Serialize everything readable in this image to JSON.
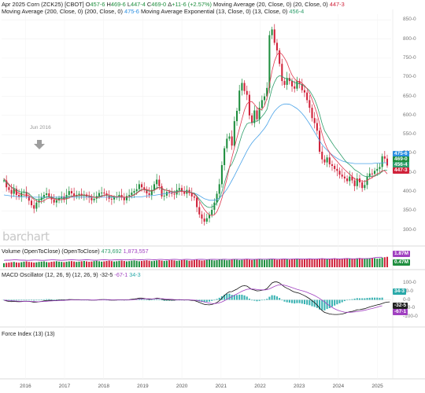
{
  "header": {
    "line1": [
      {
        "text": "Apr 2025 Corn (ZCK25) [CBOT] ",
        "color": "#222222"
      },
      {
        "text": "O",
        "color": "#222222"
      },
      {
        "text": "457-6 ",
        "color": "#1e8e3e"
      },
      {
        "text": "H",
        "color": "#222222"
      },
      {
        "text": "469-6 ",
        "color": "#1e8e3e"
      },
      {
        "text": "L",
        "color": "#222222"
      },
      {
        "text": "447-4 ",
        "color": "#1e8e3e"
      },
      {
        "text": "C",
        "color": "#222222"
      },
      {
        "text": "469-0 ",
        "color": "#1e8e3e"
      },
      {
        "text": "Δ",
        "color": "#222222"
      },
      {
        "text": "+11-6 (+2.57%) ",
        "color": "#1e8e3e"
      },
      {
        "text": "Moving Average (20, Close, 0) (20, Close, 0) ",
        "color": "#222222"
      },
      {
        "text": "447-3",
        "color": "#d0223a"
      }
    ],
    "line2": [
      {
        "text": "Moving Average (200, Close, 0) (200, Close, 0) ",
        "color": "#222222"
      },
      {
        "text": "475-6 ",
        "color": "#2b8fe0"
      },
      {
        "text": "Moving Average Exponential (13, Close, 0) (13, Close, 0) ",
        "color": "#222222"
      },
      {
        "text": "456-4",
        "color": "#2e9e6b"
      }
    ]
  },
  "annotation": "Jun 2016",
  "logo": "barchart",
  "price_tags": [
    {
      "text": "475-6",
      "color": "#2b8fe0"
    },
    {
      "text": "469-0",
      "color": "#1e8e3e"
    },
    {
      "text": "456-4",
      "color": "#2e9e6b"
    },
    {
      "text": "447-3",
      "color": "#d0223a"
    }
  ],
  "volume_panel": {
    "title_parts": [
      {
        "text": "Volume (OpenToClose) (OpenToClose) ",
        "color": "#222222"
      },
      {
        "text": "473,692 ",
        "color": "#2e9e6b"
      },
      {
        "text": "1,873,557",
        "color": "#a040c0"
      }
    ],
    "tags": [
      {
        "text": "1.87M",
        "color": "#a040c0"
      },
      {
        "text": "0.47M",
        "color": "#1e8e3e"
      }
    ]
  },
  "macd_panel": {
    "title_parts": [
      {
        "text": "MACD Oscillator (12, 26, 9) (12, 26, 9) ",
        "color": "#222222"
      },
      {
        "text": "-32-5 ",
        "color": "#222222"
      },
      {
        "text": "-67-1 ",
        "color": "#a040c0"
      },
      {
        "text": "34-3",
        "color": "#2aa9a9"
      }
    ],
    "tags": [
      {
        "text": "34-3",
        "color": "#2aa9a9"
      },
      {
        "text": "-32-5",
        "color": "#222222"
      },
      {
        "text": "-67-1",
        "color": "#a040c0"
      }
    ],
    "ticks": [
      "100-0",
      "50-0",
      "0-0",
      "-50-0",
      "-100-0"
    ]
  },
  "force_panel": {
    "title": "Force Index (13) (13)"
  },
  "chart_data": {
    "type": "candlestick",
    "title": "Apr 2025 Corn (ZCK25) [CBOT]",
    "price_ticks": [
      "850-0",
      "800-0",
      "750-0",
      "700-0",
      "650-0",
      "600-0",
      "550-0",
      "500-0",
      "450-0",
      "400-0",
      "350-0",
      "300-0"
    ],
    "ylim": [
      285,
      865
    ],
    "x_labels": [
      "2016",
      "2017",
      "2018",
      "2019",
      "2020",
      "2021",
      "2022",
      "2023",
      "2024",
      "2025"
    ],
    "period_start_year": 2015.45,
    "period_end_year": 2025.25,
    "closes": [
      430,
      412,
      405,
      395,
      408,
      392,
      388,
      398,
      400,
      388,
      377,
      365,
      356,
      372,
      378,
      385,
      392,
      396,
      388,
      380,
      372,
      378,
      384,
      388,
      381,
      392,
      402,
      396,
      388,
      392,
      395,
      390,
      393,
      388,
      385,
      378,
      382,
      389,
      397,
      398,
      396,
      390,
      382,
      380,
      385,
      387,
      392,
      385,
      378,
      389,
      392,
      398,
      402,
      407,
      420,
      412,
      405,
      396,
      392,
      405,
      420,
      432,
      415,
      388,
      390,
      400,
      398,
      395,
      393,
      405,
      410,
      400,
      395,
      405,
      397,
      388,
      385,
      360,
      341,
      330,
      322,
      331,
      340,
      353,
      372,
      395,
      420,
      470,
      514,
      539,
      545,
      521,
      585,
      612,
      665,
      685,
      664,
      654,
      600,
      580,
      613,
      590,
      620,
      640,
      650,
      672,
      810,
      825,
      790,
      770,
      735,
      690,
      680,
      698,
      690,
      676,
      670,
      690,
      682,
      666,
      660,
      640,
      620,
      593,
      580,
      560,
      505,
      485,
      477,
      490,
      472,
      468,
      460,
      455,
      445,
      440,
      435,
      428,
      440,
      430,
      415,
      435,
      425,
      410,
      418,
      440,
      448,
      447,
      455,
      460,
      465,
      493,
      487,
      469
    ],
    "ma20": [
      435,
      428,
      420,
      412,
      406,
      400,
      396,
      393,
      392,
      391,
      390,
      386,
      380,
      376,
      374,
      374,
      377,
      381,
      384,
      384,
      382,
      380,
      379,
      380,
      380,
      382,
      384,
      387,
      389,
      390,
      391,
      392,
      392,
      391,
      390,
      388,
      386,
      385,
      386,
      388,
      391,
      393,
      392,
      390,
      388,
      387,
      387,
      387,
      386,
      386,
      387,
      389,
      392,
      396,
      401,
      405,
      407,
      406,
      404,
      402,
      404,
      408,
      412,
      410,
      406,
      404,
      402,
      400,
      398,
      399,
      401,
      402,
      401,
      400,
      399,
      397,
      394,
      387,
      376,
      364,
      354,
      346,
      340,
      338,
      340,
      348,
      363,
      383,
      408,
      434,
      464,
      490,
      515,
      541,
      565,
      590,
      614,
      630,
      636,
      636,
      629,
      620,
      615,
      616,
      625,
      645,
      680,
      716,
      742,
      758,
      765,
      760,
      750,
      738,
      720,
      706,
      696,
      690,
      688,
      684,
      678,
      670,
      658,
      642,
      624,
      604,
      578,
      552,
      530,
      514,
      503,
      494,
      487,
      480,
      472,
      465,
      458,
      452,
      446,
      440,
      434,
      432,
      430,
      428,
      427,
      430,
      434,
      438,
      442,
      447,
      450,
      455,
      455,
      447
    ],
    "ma200": [
      392,
      391,
      390,
      389,
      388,
      388,
      387,
      387,
      387,
      386,
      386,
      386,
      386,
      386,
      386,
      386,
      386,
      386,
      386,
      386,
      386,
      386,
      386,
      386,
      386,
      386,
      386,
      386,
      386,
      386,
      386,
      386,
      386,
      386,
      386,
      386,
      386,
      386,
      386,
      386,
      386,
      386,
      386,
      386,
      386,
      386,
      386,
      386,
      386,
      386,
      386,
      386,
      386,
      387,
      387,
      387,
      388,
      389,
      390,
      390,
      391,
      392,
      393,
      394,
      395,
      396,
      397,
      398,
      399,
      400,
      401,
      402,
      402,
      401,
      400,
      398,
      396,
      394,
      390,
      386,
      382,
      380,
      378,
      378,
      378,
      380,
      384,
      390,
      398,
      407,
      418,
      430,
      442,
      455,
      468,
      481,
      494,
      507,
      518,
      528,
      536,
      543,
      550,
      558,
      566,
      576,
      589,
      601,
      611,
      618,
      624,
      628,
      630,
      630,
      629,
      626,
      622,
      618,
      612,
      605,
      597,
      588,
      578,
      567,
      556,
      545,
      534,
      524,
      516,
      509,
      502,
      497,
      492,
      488,
      484,
      481,
      479,
      477,
      476,
      475,
      474,
      474,
      474,
      474,
      474,
      474,
      474,
      474,
      475,
      475,
      475,
      476,
      476,
      476
    ],
    "ema13": [
      432,
      424,
      418,
      412,
      410,
      405,
      401,
      400,
      400,
      398,
      395,
      389,
      383,
      380,
      380,
      381,
      384,
      387,
      387,
      386,
      383,
      382,
      382,
      383,
      383,
      385,
      388,
      389,
      389,
      389,
      390,
      390,
      390,
      390,
      389,
      387,
      386,
      386,
      388,
      390,
      391,
      391,
      389,
      387,
      387,
      387,
      388,
      387,
      386,
      386,
      387,
      390,
      393,
      397,
      403,
      406,
      406,
      404,
      402,
      402,
      406,
      411,
      412,
      408,
      405,
      404,
      403,
      401,
      400,
      401,
      403,
      403,
      401,
      401,
      400,
      398,
      396,
      389,
      381,
      373,
      366,
      361,
      359,
      360,
      364,
      371,
      382,
      400,
      423,
      446,
      464,
      473,
      488,
      505,
      528,
      550,
      566,
      578,
      581,
      581,
      585,
      585,
      589,
      597,
      605,
      616,
      644,
      670,
      687,
      699,
      704,
      702,
      698,
      696,
      695,
      691,
      686,
      684,
      683,
      680,
      676,
      671,
      665,
      654,
      642,
      625,
      603,
      579,
      560,
      549,
      538,
      528,
      518,
      510,
      501,
      492,
      483,
      476,
      471,
      465,
      458,
      454,
      450,
      444,
      441,
      440,
      440,
      441,
      442,
      444,
      447,
      454,
      457,
      456
    ],
    "volume_units": "relative 0-1",
    "volume": [
      0.3,
      0.33,
      0.35,
      0.38,
      0.4,
      0.36,
      0.34,
      0.38,
      0.42,
      0.44,
      0.4,
      0.38,
      0.35,
      0.37,
      0.4,
      0.42,
      0.44,
      0.39,
      0.37,
      0.41,
      0.43,
      0.45,
      0.42,
      0.4,
      0.38,
      0.41,
      0.44,
      0.46,
      0.43,
      0.4,
      0.42,
      0.45,
      0.47,
      0.44,
      0.41,
      0.43,
      0.46,
      0.48,
      0.45,
      0.42,
      0.44,
      0.47,
      0.49,
      0.46,
      0.43,
      0.45,
      0.48,
      0.5,
      0.47,
      0.44,
      0.46,
      0.49,
      0.51,
      0.48,
      0.45,
      0.47,
      0.5,
      0.52,
      0.49,
      0.46,
      0.48,
      0.51,
      0.53,
      0.5,
      0.47,
      0.49,
      0.52,
      0.54,
      0.51,
      0.48,
      0.5,
      0.53,
      0.55,
      0.52,
      0.49,
      0.51,
      0.54,
      0.56,
      0.53,
      0.5,
      0.52,
      0.55,
      0.57,
      0.54,
      0.51,
      0.53,
      0.56,
      0.58,
      0.55,
      0.52,
      0.54,
      0.57,
      0.59,
      0.56,
      0.53,
      0.55,
      0.58,
      0.6,
      0.57,
      0.54,
      0.56,
      0.59,
      0.61,
      0.58,
      0.55,
      0.57,
      0.6,
      0.62,
      0.59,
      0.56,
      0.58,
      0.61,
      0.63,
      0.6,
      0.57,
      0.59,
      0.62,
      0.64,
      0.61,
      0.58,
      0.6,
      0.63,
      0.65,
      0.62,
      0.59,
      0.61,
      0.64,
      0.66,
      0.63,
      0.6,
      0.62,
      0.65,
      0.67,
      0.64,
      0.61,
      0.63,
      0.66,
      0.68,
      0.65,
      0.62,
      0.64,
      0.67,
      0.69,
      0.66,
      0.63,
      0.65,
      0.68,
      0.7,
      0.67,
      0.64,
      0.66,
      0.72,
      0.75,
      0.78
    ],
    "volume_ma": [
      0.52,
      0.53,
      0.53,
      0.54,
      0.55,
      0.55,
      0.54,
      0.53,
      0.53,
      0.52,
      0.52,
      0.53,
      0.54,
      0.54,
      0.53,
      0.52,
      0.52,
      0.53,
      0.54,
      0.55,
      0.55,
      0.54,
      0.53,
      0.52,
      0.53,
      0.54,
      0.55,
      0.56,
      0.55,
      0.54,
      0.53,
      0.54,
      0.55,
      0.56,
      0.55,
      0.54,
      0.53,
      0.53,
      0.54,
      0.55,
      0.56,
      0.55,
      0.54,
      0.54,
      0.55,
      0.56,
      0.57,
      0.56,
      0.55,
      0.55,
      0.56,
      0.57,
      0.58,
      0.57,
      0.56,
      0.56,
      0.57,
      0.58,
      0.58,
      0.57,
      0.56,
      0.57,
      0.58,
      0.58,
      0.57,
      0.56,
      0.57,
      0.58,
      0.59,
      0.58,
      0.57,
      0.57,
      0.58,
      0.59,
      0.58,
      0.57,
      0.57,
      0.58,
      0.59,
      0.59,
      0.58,
      0.57,
      0.58,
      0.59,
      0.59,
      0.58,
      0.58,
      0.59,
      0.6,
      0.59,
      0.58,
      0.59,
      0.6,
      0.6,
      0.59,
      0.59,
      0.6,
      0.61,
      0.6,
      0.59,
      0.59,
      0.6,
      0.61,
      0.6,
      0.6,
      0.6,
      0.61,
      0.62,
      0.61,
      0.6,
      0.6,
      0.61,
      0.62,
      0.61,
      0.6,
      0.61,
      0.62,
      0.63,
      0.62,
      0.61,
      0.61,
      0.62,
      0.63,
      0.62,
      0.61,
      0.62,
      0.63,
      0.64,
      0.63,
      0.62,
      0.62,
      0.63,
      0.64,
      0.63,
      0.62,
      0.63,
      0.64,
      0.65,
      0.64,
      0.63,
      0.63,
      0.64,
      0.65,
      0.64,
      0.64,
      0.65,
      0.66,
      0.68,
      0.72,
      0.74,
      0.75,
      0.75
    ],
    "macd_ylim": [
      -130,
      130
    ],
    "macd": [
      -2,
      -6,
      -9,
      -10,
      -9,
      -10,
      -11,
      -10,
      -8,
      -8,
      -9,
      -11,
      -14,
      -13,
      -11,
      -9,
      -6,
      -4,
      -3,
      -3,
      -4,
      -3,
      -2,
      -1,
      -1,
      0,
      2,
      2,
      1,
      1,
      1,
      0,
      0,
      0,
      -1,
      -2,
      -2,
      -1,
      1,
      2,
      2,
      1,
      -1,
      -2,
      -2,
      -1,
      0,
      0,
      -1,
      0,
      1,
      3,
      5,
      7,
      10,
      10,
      8,
      5,
      3,
      4,
      7,
      10,
      9,
      4,
      1,
      0,
      -1,
      -2,
      -2,
      0,
      1,
      0,
      -1,
      0,
      -1,
      -3,
      -4,
      -9,
      -15,
      -21,
      -26,
      -28,
      -29,
      -27,
      -22,
      -15,
      -5,
      9,
      25,
      38,
      47,
      48,
      55,
      62,
      72,
      80,
      82,
      80,
      70,
      60,
      57,
      52,
      53,
      56,
      59,
      65,
      82,
      98,
      104,
      104,
      98,
      86,
      75,
      67,
      60,
      52,
      45,
      42,
      38,
      31,
      24,
      16,
      7,
      -5,
      -16,
      -30,
      -48,
      -62,
      -73,
      -77,
      -82,
      -84,
      -85,
      -85,
      -84,
      -82,
      -78,
      -73,
      -69,
      -67,
      -63,
      -58,
      -57,
      -54,
      -51,
      -46,
      -41,
      -37,
      -33,
      -29,
      -26,
      -21,
      -16,
      -13,
      -12
    ],
    "macd_signal": [
      -2,
      -3,
      -4,
      -5,
      -6,
      -7,
      -8,
      -8,
      -8,
      -8,
      -8,
      -9,
      -10,
      -11,
      -11,
      -10,
      -9,
      -8,
      -7,
      -6,
      -5,
      -5,
      -4,
      -3,
      -3,
      -2,
      -1,
      0,
      0,
      0,
      0,
      0,
      0,
      0,
      0,
      -1,
      -1,
      -1,
      0,
      0,
      1,
      1,
      1,
      0,
      0,
      0,
      0,
      0,
      0,
      0,
      0,
      1,
      2,
      3,
      4,
      6,
      6,
      6,
      6,
      5,
      6,
      7,
      7,
      7,
      6,
      5,
      4,
      3,
      2,
      1,
      1,
      1,
      0,
      0,
      0,
      -1,
      -2,
      -3,
      -6,
      -9,
      -12,
      -16,
      -19,
      -21,
      -22,
      -20,
      -17,
      -12,
      -5,
      3,
      11,
      19,
      27,
      34,
      42,
      50,
      56,
      61,
      63,
      63,
      62,
      60,
      59,
      58,
      58,
      59,
      64,
      71,
      78,
      84,
      87,
      87,
      85,
      81,
      76,
      71,
      66,
      61,
      57,
      53,
      49,
      44,
      38,
      32,
      25,
      17,
      8,
      -2,
      -12,
      -24,
      -34,
      -44,
      -52,
      -59,
      -64,
      -68,
      -71,
      -72,
      -72,
      -71,
      -70,
      -68,
      -66,
      -63,
      -60,
      -57,
      -53,
      -50,
      -46,
      -42,
      -38,
      -34
    ]
  }
}
